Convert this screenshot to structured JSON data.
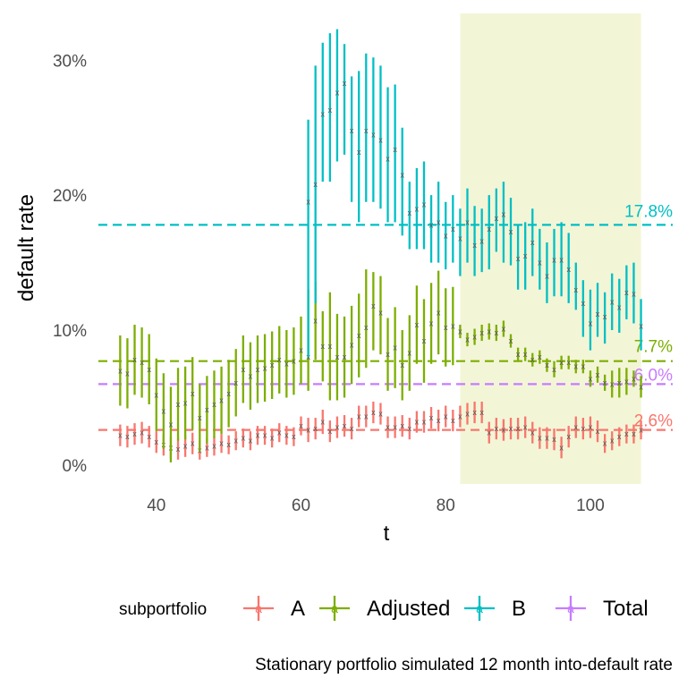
{
  "chart_data": {
    "type": "line",
    "subtype": "errorbar",
    "xlabel": "t",
    "ylabel": "default rate",
    "xlim": [
      31,
      112
    ],
    "ylim": [
      -0.016,
      0.338
    ],
    "x_ticks": [
      40,
      60,
      80,
      100
    ],
    "y_ticks": [
      0,
      0.1,
      0.2,
      0.3
    ],
    "y_tick_labels": [
      "0%",
      "10%",
      "20%",
      "30%"
    ],
    "grid": false,
    "shaded_region": {
      "x": [
        82,
        107
      ],
      "color": "#f3f5d7"
    },
    "legend": {
      "title": "subportfolio",
      "position": "bottom",
      "entries": [
        "A",
        "Adjusted",
        "B",
        "Total"
      ]
    },
    "caption": "Stationary portfolio simulated 12 month into-default rate",
    "mark_glyph": "a",
    "reference_lines": [
      {
        "series": "A",
        "value": 0.026,
        "label": "2.6%",
        "color": "#f8766d"
      },
      {
        "series": "Adjusted",
        "value": 0.077,
        "label": "7.7%",
        "color": "#7cae00"
      },
      {
        "series": "B",
        "value": 0.178,
        "label": "17.8%",
        "color": "#00bfc4"
      },
      {
        "series": "Total",
        "value": 0.06,
        "label": "6.0%",
        "color": "#c77cff"
      }
    ],
    "series": [
      {
        "name": "A",
        "color": "#f8766d",
        "x": [
          35,
          36,
          37,
          38,
          39,
          40,
          41,
          42,
          43,
          44,
          45,
          46,
          47,
          48,
          49,
          50,
          51,
          52,
          53,
          54,
          55,
          56,
          57,
          58,
          59,
          60,
          61,
          62,
          63,
          64,
          65,
          66,
          67,
          68,
          69,
          70,
          71,
          72,
          73,
          74,
          75,
          76,
          77,
          78,
          79,
          80,
          81,
          82,
          83,
          84,
          85,
          86,
          87,
          88,
          89,
          90,
          91,
          92,
          93,
          94,
          95,
          96,
          97,
          98,
          99,
          100,
          101,
          102,
          103,
          104,
          105,
          106,
          107
        ],
        "y": [
          0.022,
          0.021,
          0.023,
          0.024,
          0.021,
          0.017,
          0.015,
          0.013,
          0.012,
          0.014,
          0.016,
          0.011,
          0.013,
          0.014,
          0.016,
          0.015,
          0.018,
          0.02,
          0.018,
          0.022,
          0.022,
          0.02,
          0.024,
          0.022,
          0.021,
          0.029,
          0.026,
          0.027,
          0.032,
          0.025,
          0.028,
          0.029,
          0.027,
          0.036,
          0.036,
          0.039,
          0.038,
          0.028,
          0.028,
          0.029,
          0.027,
          0.032,
          0.032,
          0.035,
          0.033,
          0.036,
          0.033,
          0.036,
          0.038,
          0.039,
          0.039,
          0.024,
          0.027,
          0.026,
          0.027,
          0.027,
          0.028,
          0.024,
          0.02,
          0.02,
          0.019,
          0.013,
          0.021,
          0.028,
          0.027,
          0.028,
          0.025,
          0.016,
          0.018,
          0.021,
          0.023,
          0.023,
          0.026
        ],
        "lower": [
          0.014,
          0.013,
          0.015,
          0.016,
          0.013,
          0.009,
          0.007,
          0.005,
          0.004,
          0.006,
          0.008,
          0.004,
          0.006,
          0.007,
          0.009,
          0.008,
          0.011,
          0.013,
          0.011,
          0.015,
          0.015,
          0.013,
          0.017,
          0.015,
          0.014,
          0.022,
          0.017,
          0.019,
          0.023,
          0.017,
          0.02,
          0.021,
          0.019,
          0.028,
          0.028,
          0.031,
          0.03,
          0.02,
          0.02,
          0.021,
          0.019,
          0.024,
          0.024,
          0.027,
          0.025,
          0.028,
          0.025,
          0.028,
          0.03,
          0.031,
          0.031,
          0.016,
          0.019,
          0.018,
          0.019,
          0.019,
          0.02,
          0.016,
          0.012,
          0.012,
          0.011,
          0.005,
          0.013,
          0.02,
          0.019,
          0.02,
          0.017,
          0.009,
          0.011,
          0.014,
          0.016,
          0.016,
          0.019
        ],
        "upper": [
          0.03,
          0.029,
          0.031,
          0.032,
          0.029,
          0.025,
          0.023,
          0.021,
          0.02,
          0.022,
          0.024,
          0.018,
          0.02,
          0.021,
          0.023,
          0.022,
          0.025,
          0.027,
          0.025,
          0.029,
          0.029,
          0.027,
          0.031,
          0.029,
          0.028,
          0.036,
          0.035,
          0.035,
          0.041,
          0.033,
          0.036,
          0.037,
          0.035,
          0.044,
          0.044,
          0.047,
          0.046,
          0.036,
          0.036,
          0.037,
          0.035,
          0.04,
          0.04,
          0.043,
          0.041,
          0.044,
          0.041,
          0.044,
          0.046,
          0.047,
          0.047,
          0.032,
          0.035,
          0.034,
          0.035,
          0.035,
          0.036,
          0.032,
          0.028,
          0.028,
          0.027,
          0.021,
          0.029,
          0.036,
          0.035,
          0.036,
          0.033,
          0.023,
          0.025,
          0.028,
          0.03,
          0.03,
          0.033
        ]
      },
      {
        "name": "Adjusted",
        "color": "#7cae00",
        "x": [
          35,
          36,
          37,
          38,
          39,
          40,
          41,
          42,
          43,
          44,
          45,
          46,
          47,
          48,
          49,
          50,
          51,
          52,
          53,
          54,
          55,
          56,
          57,
          58,
          59,
          60,
          61,
          62,
          63,
          64,
          65,
          66,
          67,
          68,
          69,
          70,
          71,
          72,
          73,
          74,
          75,
          76,
          77,
          78,
          79,
          80,
          81,
          82,
          83,
          84,
          85,
          86,
          87,
          88,
          89,
          90,
          91,
          92,
          93,
          94,
          95,
          96,
          97,
          98,
          99,
          100,
          101,
          102,
          103,
          104,
          105,
          106,
          107
        ],
        "y": [
          0.07,
          0.068,
          0.078,
          0.076,
          0.071,
          0.052,
          0.04,
          0.03,
          0.045,
          0.046,
          0.053,
          0.035,
          0.041,
          0.045,
          0.048,
          0.053,
          0.061,
          0.071,
          0.066,
          0.071,
          0.072,
          0.074,
          0.078,
          0.075,
          0.077,
          0.085,
          0.08,
          0.107,
          0.088,
          0.088,
          0.08,
          0.08,
          0.089,
          0.096,
          0.102,
          0.118,
          0.113,
          0.082,
          0.087,
          0.074,
          0.083,
          0.104,
          0.092,
          0.105,
          0.113,
          0.102,
          0.103,
          0.099,
          0.093,
          0.095,
          0.098,
          0.099,
          0.098,
          0.101,
          0.092,
          0.082,
          0.082,
          0.078,
          0.08,
          0.074,
          0.071,
          0.076,
          0.076,
          0.073,
          0.073,
          0.064,
          0.067,
          0.061,
          0.06,
          0.061,
          0.062,
          0.064,
          0.058
        ],
        "lower": [
          0.044,
          0.042,
          0.052,
          0.05,
          0.045,
          0.025,
          0.012,
          0.002,
          0.018,
          0.019,
          0.026,
          0.01,
          0.016,
          0.02,
          0.023,
          0.028,
          0.036,
          0.046,
          0.041,
          0.046,
          0.047,
          0.049,
          0.053,
          0.05,
          0.052,
          0.06,
          0.055,
          0.078,
          0.062,
          0.048,
          0.048,
          0.05,
          0.06,
          0.065,
          0.072,
          0.085,
          0.082,
          0.055,
          0.057,
          0.048,
          0.055,
          0.075,
          0.061,
          0.075,
          0.082,
          0.073,
          0.074,
          0.094,
          0.088,
          0.089,
          0.092,
          0.093,
          0.092,
          0.095,
          0.087,
          0.077,
          0.077,
          0.073,
          0.075,
          0.069,
          0.065,
          0.071,
          0.071,
          0.068,
          0.068,
          0.058,
          0.061,
          0.055,
          0.05,
          0.05,
          0.052,
          0.058,
          0.05
        ],
        "upper": [
          0.096,
          0.094,
          0.104,
          0.102,
          0.097,
          0.079,
          0.068,
          0.058,
          0.072,
          0.073,
          0.08,
          0.06,
          0.066,
          0.07,
          0.073,
          0.078,
          0.086,
          0.096,
          0.091,
          0.096,
          0.097,
          0.099,
          0.103,
          0.1,
          0.102,
          0.11,
          0.13,
          0.136,
          0.114,
          0.128,
          0.112,
          0.11,
          0.118,
          0.127,
          0.145,
          0.143,
          0.14,
          0.109,
          0.117,
          0.1,
          0.111,
          0.133,
          0.123,
          0.135,
          0.144,
          0.131,
          0.132,
          0.104,
          0.098,
          0.101,
          0.104,
          0.105,
          0.104,
          0.107,
          0.097,
          0.087,
          0.087,
          0.083,
          0.085,
          0.079,
          0.077,
          0.081,
          0.081,
          0.078,
          0.078,
          0.07,
          0.073,
          0.067,
          0.07,
          0.072,
          0.072,
          0.07,
          0.066
        ]
      },
      {
        "name": "B",
        "color": "#00bfc4",
        "x": [
          61,
          62,
          63,
          64,
          65,
          66,
          67,
          68,
          69,
          70,
          71,
          72,
          73,
          74,
          75,
          76,
          77,
          78,
          79,
          80,
          81,
          82,
          83,
          84,
          85,
          86,
          87,
          88,
          89,
          90,
          91,
          92,
          93,
          94,
          95,
          96,
          97,
          98,
          99,
          100,
          101,
          102,
          103,
          104,
          105,
          106,
          107
        ],
        "y": [
          0.195,
          0.208,
          0.26,
          0.263,
          0.276,
          0.283,
          0.248,
          0.232,
          0.248,
          0.245,
          0.241,
          0.227,
          0.234,
          0.215,
          0.187,
          0.19,
          0.193,
          0.178,
          0.18,
          0.17,
          0.175,
          0.168,
          0.18,
          0.163,
          0.166,
          0.175,
          0.183,
          0.186,
          0.173,
          0.153,
          0.155,
          0.165,
          0.15,
          0.14,
          0.152,
          0.152,
          0.145,
          0.13,
          0.12,
          0.105,
          0.112,
          0.11,
          0.121,
          0.117,
          0.128,
          0.127,
          0.103
        ],
        "lower": [
          0.08,
          0.12,
          0.21,
          0.21,
          0.225,
          0.23,
          0.195,
          0.18,
          0.195,
          0.195,
          0.19,
          0.18,
          0.18,
          0.17,
          0.16,
          0.16,
          0.16,
          0.15,
          0.15,
          0.145,
          0.15,
          0.14,
          0.15,
          0.14,
          0.143,
          0.145,
          0.158,
          0.15,
          0.148,
          0.13,
          0.13,
          0.14,
          0.13,
          0.12,
          0.125,
          0.125,
          0.12,
          0.115,
          0.095,
          0.085,
          0.095,
          0.09,
          0.1,
          0.098,
          0.108,
          0.105,
          0.085
        ],
        "upper": [
          0.256,
          0.296,
          0.313,
          0.32,
          0.323,
          0.312,
          0.288,
          0.292,
          0.305,
          0.302,
          0.296,
          0.28,
          0.282,
          0.25,
          0.21,
          0.22,
          0.225,
          0.2,
          0.21,
          0.195,
          0.2,
          0.19,
          0.205,
          0.192,
          0.19,
          0.2,
          0.205,
          0.21,
          0.198,
          0.178,
          0.18,
          0.19,
          0.175,
          0.165,
          0.175,
          0.18,
          0.172,
          0.15,
          0.137,
          0.13,
          0.135,
          0.128,
          0.142,
          0.138,
          0.148,
          0.15,
          0.123
        ]
      }
    ]
  }
}
